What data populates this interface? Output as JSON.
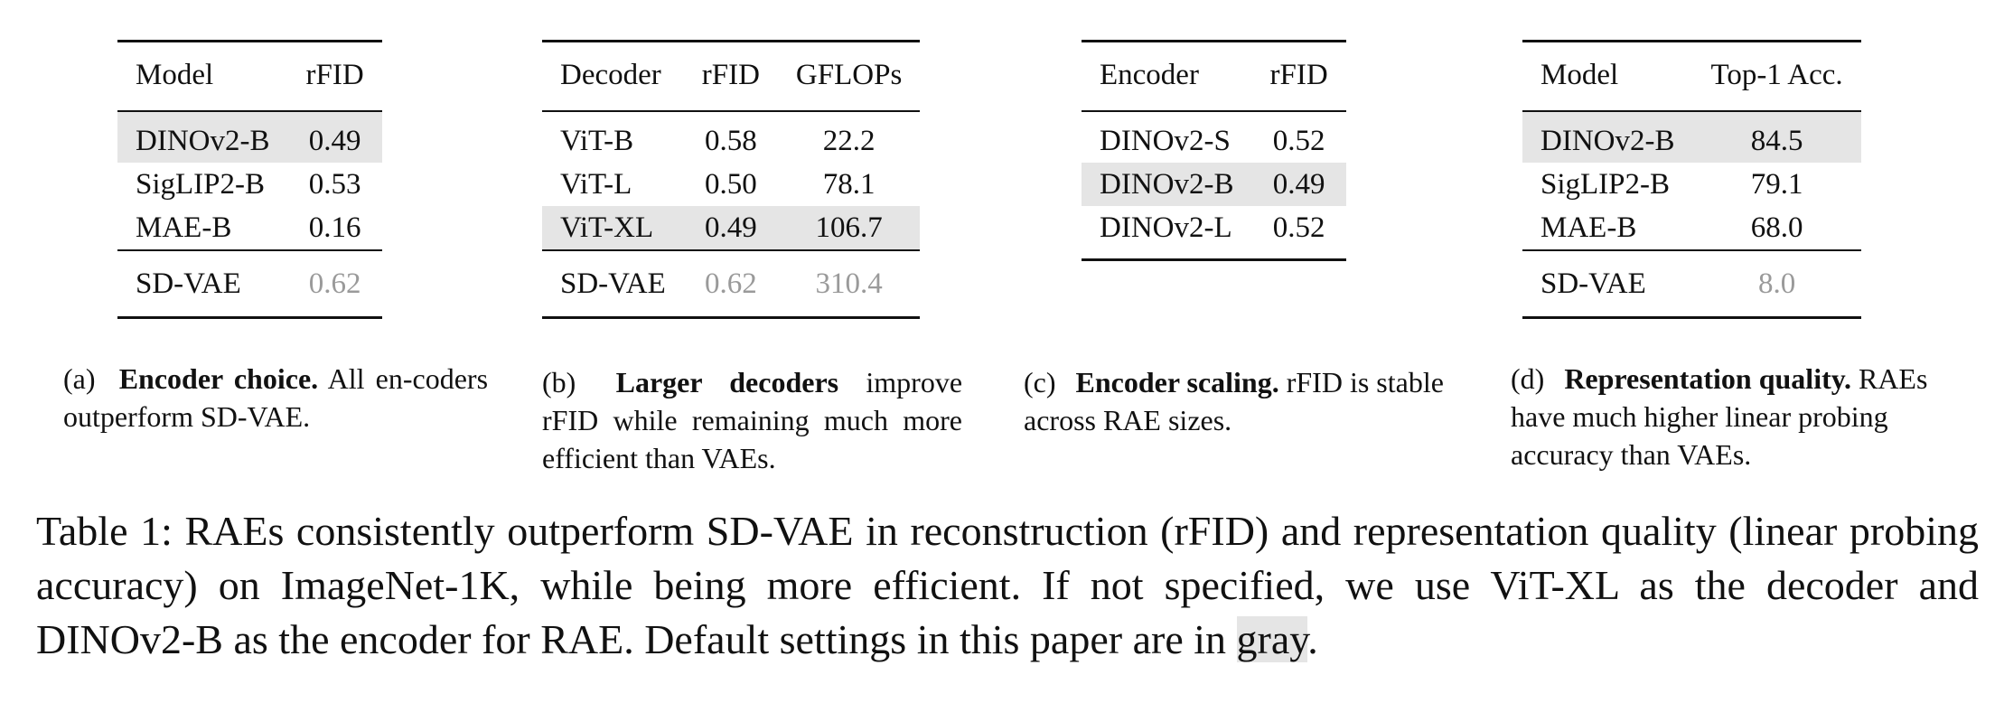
{
  "tables": {
    "a": {
      "headers": [
        "Model",
        "rFID"
      ],
      "rows": [
        [
          "DINOv2-B",
          "0.49"
        ],
        [
          "SigLIP2-B",
          "0.53"
        ],
        [
          "MAE-B",
          "0.16"
        ]
      ],
      "baseline": [
        "SD-VAE",
        "0.62"
      ]
    },
    "b": {
      "headers": [
        "Decoder",
        "rFID",
        "GFLOPs"
      ],
      "rows": [
        [
          "ViT-B",
          "0.58",
          "22.2"
        ],
        [
          "ViT-L",
          "0.50",
          "78.1"
        ],
        [
          "ViT-XL",
          "0.49",
          "106.7"
        ]
      ],
      "baseline": [
        "SD-VAE",
        "0.62",
        "310.4"
      ]
    },
    "c": {
      "headers": [
        "Encoder",
        "rFID"
      ],
      "rows": [
        [
          "DINOv2-S",
          "0.52"
        ],
        [
          "DINOv2-B",
          "0.49"
        ],
        [
          "DINOv2-L",
          "0.52"
        ]
      ]
    },
    "d": {
      "headers": [
        "Model",
        "Top-1 Acc."
      ],
      "rows": [
        [
          "DINOv2-B",
          "84.5"
        ],
        [
          "SigLIP2-B",
          "79.1"
        ],
        [
          "MAE-B",
          "68.0"
        ]
      ],
      "baseline": [
        "SD-VAE",
        "8.0"
      ]
    }
  },
  "subcaptions": {
    "a": {
      "label": "(a)",
      "title": "Encoder choice.",
      "text": "All en-coders outperform SD-VAE."
    },
    "b": {
      "label": "(b)",
      "title": "Larger decoders",
      "text": "improve rFID while remaining much more efficient than VAEs."
    },
    "c": {
      "label": "(c)",
      "title": "Encoder scaling.",
      "text": "rFID is stable across RAE sizes."
    },
    "d": {
      "label": "(d)",
      "title": "Representation quality.",
      "text": "RAEs have much higher linear probing accuracy than VAEs."
    }
  },
  "caption": {
    "text": "Table 1: RAEs consistently outperform SD-VAE in reconstruction (rFID) and representation quality (linear probing accuracy) on ImageNet-1K, while being more efficient. If not specified, we use ViT-XL as the decoder and DINOv2-B as the encoder for RAE. Default settings in this paper are in",
    "highlight": "gray",
    "end": "."
  },
  "colors": {
    "highlight": "#e5e5e5",
    "baseline_text": "#9a9a9a"
  }
}
